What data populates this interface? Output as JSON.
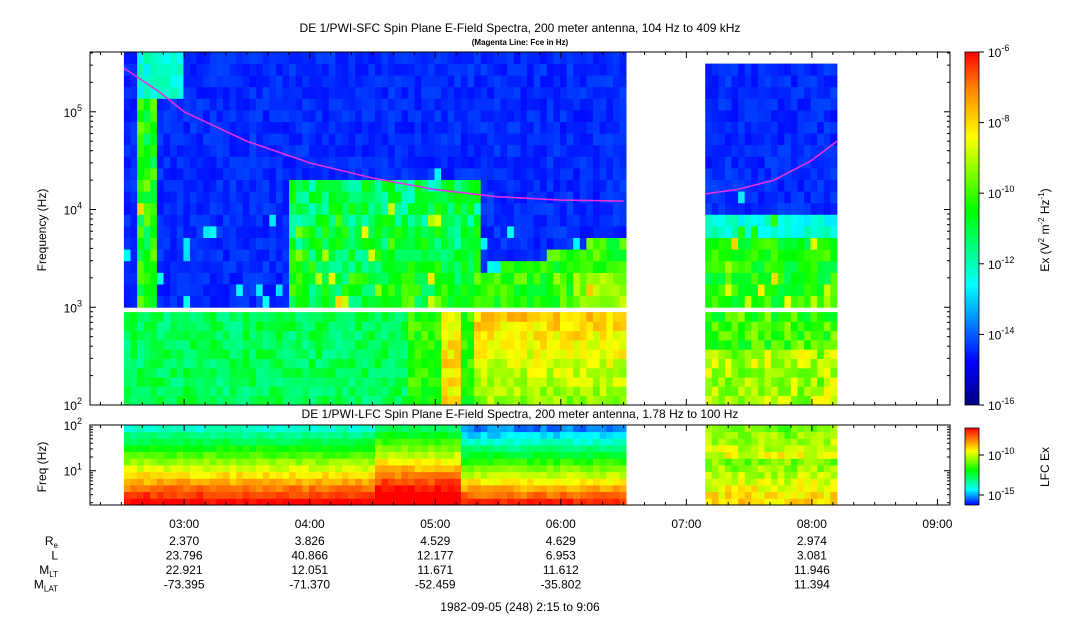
{
  "chart_data": [
    {
      "type": "heatmap",
      "title": "DE 1/PWI-SFC  Spin Plane E-Field Spectra, 200 meter antenna, 104 Hz to 409 kHz",
      "subtitle": "(Magenta Line: Fce in Hz)",
      "ylabel": "Frequency (Hz)",
      "yscale": "log",
      "ylim_hz": [
        100,
        409000
      ],
      "yticks": [
        "10",
        "10",
        "10",
        "10"
      ],
      "ytick_exponents": [
        "2",
        "3",
        "4",
        "5"
      ],
      "colorbar": {
        "label_parts": [
          "Ex (V",
          "2",
          " m",
          "-2",
          " Hz",
          "-1",
          ")"
        ],
        "scale": "log",
        "ticks": [
          "10",
          "10",
          "10",
          "10",
          "10",
          "10"
        ],
        "tick_exponents": [
          "-6",
          "-8",
          "-10",
          "-12",
          "-14",
          "-16"
        ],
        "range": [
          1e-16,
          1e-06
        ]
      },
      "data_gaps_hours": [
        [
          6.52,
          7.15
        ]
      ],
      "data_coverage_hours": [
        [
          2.52,
          6.52
        ],
        [
          7.15,
          8.2
        ]
      ],
      "fce_line": {
        "color": "#e030e0",
        "segments": [
          {
            "x": [
              2.52,
              2.8,
              3.0,
              3.5,
              4.0,
              4.5,
              5.0,
              5.5,
              6.0,
              6.5
            ],
            "y": [
              280000,
              160000,
              100000,
              50000,
              30000,
              21000,
              16000,
              13500,
              12500,
              12200
            ]
          },
          {
            "x": [
              7.15,
              7.4,
              7.7,
              8.0,
              8.2
            ],
            "y": [
              14500,
              16000,
              20000,
              32000,
              50000
            ]
          }
        ]
      }
    },
    {
      "type": "heatmap",
      "title": "DE 1/PWI-LFC  Spin Plane E-Field Spectra, 200 meter antenna, 1.78 Hz to 100 Hz",
      "ylabel": "Freq (Hz)",
      "yscale": "log",
      "ylim_hz": [
        1.78,
        100
      ],
      "yticks": [
        "10",
        "10"
      ],
      "ytick_exponents": [
        "1",
        "2"
      ],
      "colorbar": {
        "label": "LFC Ex",
        "scale": "log",
        "ticks": [
          "10",
          "10"
        ],
        "tick_exponents": [
          "-10",
          "-15"
        ]
      },
      "data_coverage_hours": [
        [
          2.52,
          6.52
        ],
        [
          7.15,
          8.2
        ]
      ]
    }
  ],
  "time_axis": {
    "range_hours": [
      2.25,
      9.1
    ],
    "tick_labels": [
      "03:00",
      "04:00",
      "05:00",
      "06:00",
      "07:00",
      "08:00",
      "09:00"
    ],
    "tick_hours": [
      3,
      4,
      5,
      6,
      7,
      8,
      9
    ],
    "caption": "1982-09-05 (248) 2:15 to 9:06"
  },
  "ephemeris": {
    "rows": [
      {
        "label": "R",
        "sub": "e",
        "values": [
          "2.370",
          "3.826",
          "4.529",
          "4.629",
          "",
          "2.974"
        ]
      },
      {
        "label": "L",
        "sub": "",
        "values": [
          "23.796",
          "40.866",
          "12.177",
          "6.953",
          "",
          "3.081"
        ]
      },
      {
        "label": "M",
        "sub": "LT",
        "values": [
          "22.921",
          "12.051",
          "11.671",
          "11.612",
          "",
          "11.946"
        ]
      },
      {
        "label": "M",
        "sub": "LAT",
        "values": [
          "-73.395",
          "-71.370",
          "-52.459",
          "-35.802",
          "",
          "11.394"
        ]
      }
    ]
  }
}
